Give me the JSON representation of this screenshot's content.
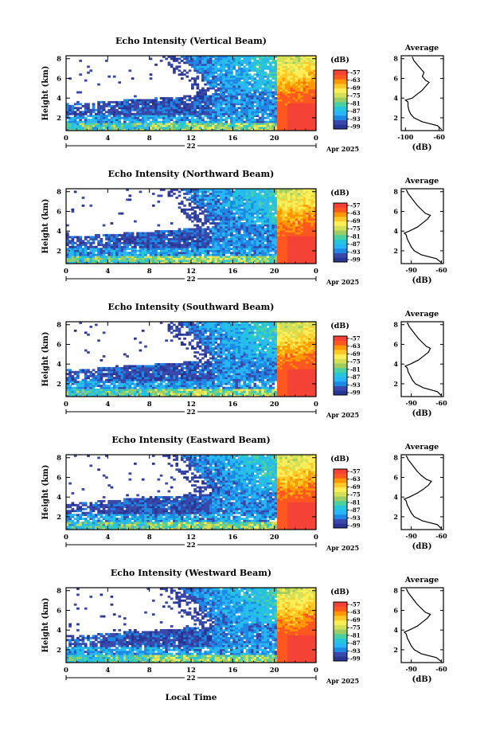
{
  "chart_data": {
    "type": "heatmap",
    "x_axis": {
      "label": "Local Time",
      "ticks": [
        "0",
        "4",
        "8",
        "12",
        "16",
        "20",
        "0"
      ],
      "range_hours": [
        0,
        24
      ],
      "day_label": "22",
      "date_label": "Apr 2025"
    },
    "y_axis": {
      "label": "Height (km)",
      "ticks": [
        "2",
        "4",
        "6",
        "8"
      ],
      "range_km": [
        0.7,
        8.3
      ]
    },
    "colorbar": {
      "unit": "(dB)",
      "ticks": [
        "-57",
        "-63",
        "-69",
        "-75",
        "-81",
        "-87",
        "-93",
        "-99"
      ],
      "colors": [
        "#283593",
        "#3949ab",
        "#1e88e5",
        "#29b6f6",
        "#26c6da",
        "#4dd0a0",
        "#9ccc65",
        "#d4e157",
        "#ffee58",
        "#ffca28",
        "#ff9800",
        "#ff5722",
        "#f44336"
      ]
    },
    "average_panel": {
      "title": "Average",
      "xlabel": "(dB)",
      "yticks": [
        "2",
        "4",
        "6",
        "8"
      ],
      "ylim": [
        0.7,
        8.3
      ]
    },
    "panels": [
      {
        "title": "Echo Intensity (Vertical Beam)",
        "avg_xticks": [
          "-100",
          "-60"
        ],
        "avg_xlim": [
          -105,
          -55
        ],
        "profile": [
          [
            0.8,
            -57
          ],
          [
            1.2,
            -62
          ],
          [
            1.6,
            -80
          ],
          [
            2.0,
            -90
          ],
          [
            2.4,
            -94
          ],
          [
            2.8,
            -96
          ],
          [
            3.2,
            -97
          ],
          [
            3.6,
            -97
          ],
          [
            3.8,
            -100
          ],
          [
            4.0,
            -92
          ],
          [
            4.4,
            -86
          ],
          [
            4.8,
            -80
          ],
          [
            5.2,
            -76
          ],
          [
            5.6,
            -72
          ],
          [
            5.8,
            -76
          ],
          [
            6.2,
            -80
          ],
          [
            6.6,
            -78
          ],
          [
            7.0,
            -82
          ],
          [
            7.4,
            -86
          ],
          [
            7.8,
            -90
          ],
          [
            8.2,
            -92
          ]
        ]
      },
      {
        "title": "Echo Intensity (Northward Beam)",
        "avg_xticks": [
          "-90",
          "-60"
        ],
        "avg_xlim": [
          -100,
          -58
        ],
        "profile": [
          [
            0.8,
            -60
          ],
          [
            1.2,
            -65
          ],
          [
            1.6,
            -80
          ],
          [
            2.0,
            -87
          ],
          [
            2.4,
            -90
          ],
          [
            2.8,
            -92
          ],
          [
            3.2,
            -94
          ],
          [
            3.6,
            -95
          ],
          [
            3.8,
            -97
          ],
          [
            4.0,
            -92
          ],
          [
            4.4,
            -84
          ],
          [
            4.8,
            -79
          ],
          [
            5.2,
            -74
          ],
          [
            5.6,
            -71
          ],
          [
            5.8,
            -76
          ],
          [
            6.2,
            -80
          ],
          [
            6.6,
            -84
          ],
          [
            7.0,
            -87
          ],
          [
            7.4,
            -90
          ],
          [
            7.8,
            -93
          ],
          [
            8.2,
            -95
          ]
        ]
      },
      {
        "title": "Echo Intensity (Southward Beam)",
        "avg_xticks": [
          "-90",
          "-60"
        ],
        "avg_xlim": [
          -100,
          -58
        ],
        "profile": [
          [
            0.8,
            -60
          ],
          [
            1.2,
            -64
          ],
          [
            1.6,
            -78
          ],
          [
            2.0,
            -86
          ],
          [
            2.4,
            -89
          ],
          [
            2.8,
            -91
          ],
          [
            3.2,
            -93
          ],
          [
            3.6,
            -94
          ],
          [
            3.8,
            -96
          ],
          [
            4.0,
            -91
          ],
          [
            4.4,
            -83
          ],
          [
            4.8,
            -78
          ],
          [
            5.2,
            -73
          ],
          [
            5.6,
            -71
          ],
          [
            5.8,
            -75
          ],
          [
            6.2,
            -79
          ],
          [
            6.6,
            -83
          ],
          [
            7.0,
            -86
          ],
          [
            7.4,
            -89
          ],
          [
            7.8,
            -92
          ],
          [
            8.2,
            -94
          ]
        ]
      },
      {
        "title": "Echo Intensity (Eastward Beam)",
        "avg_xticks": [
          "-90",
          "-60"
        ],
        "avg_xlim": [
          -100,
          -58
        ],
        "profile": [
          [
            0.8,
            -60
          ],
          [
            1.2,
            -64
          ],
          [
            1.6,
            -79
          ],
          [
            2.0,
            -87
          ],
          [
            2.4,
            -90
          ],
          [
            2.8,
            -92
          ],
          [
            3.2,
            -94
          ],
          [
            3.6,
            -95
          ],
          [
            3.8,
            -97
          ],
          [
            4.0,
            -92
          ],
          [
            4.4,
            -84
          ],
          [
            4.8,
            -78
          ],
          [
            5.2,
            -73
          ],
          [
            5.6,
            -70
          ],
          [
            5.8,
            -75
          ],
          [
            6.2,
            -80
          ],
          [
            6.6,
            -84
          ],
          [
            7.0,
            -87
          ],
          [
            7.4,
            -90
          ],
          [
            7.8,
            -93
          ],
          [
            8.2,
            -95
          ]
        ]
      },
      {
        "title": "Echo Intensity (Westward Beam)",
        "avg_xticks": [
          "-90",
          "-60"
        ],
        "avg_xlim": [
          -100,
          -58
        ],
        "profile": [
          [
            0.8,
            -60
          ],
          [
            1.2,
            -65
          ],
          [
            1.6,
            -80
          ],
          [
            2.0,
            -87
          ],
          [
            2.4,
            -90
          ],
          [
            2.8,
            -92
          ],
          [
            3.2,
            -94
          ],
          [
            3.6,
            -95
          ],
          [
            3.8,
            -97
          ],
          [
            4.0,
            -92
          ],
          [
            4.4,
            -84
          ],
          [
            4.8,
            -79
          ],
          [
            5.2,
            -74
          ],
          [
            5.6,
            -71
          ],
          [
            5.8,
            -76
          ],
          [
            6.2,
            -80
          ],
          [
            6.6,
            -84
          ],
          [
            7.0,
            -87
          ],
          [
            7.4,
            -90
          ],
          [
            7.8,
            -93
          ],
          [
            8.2,
            -95
          ]
        ]
      }
    ]
  }
}
